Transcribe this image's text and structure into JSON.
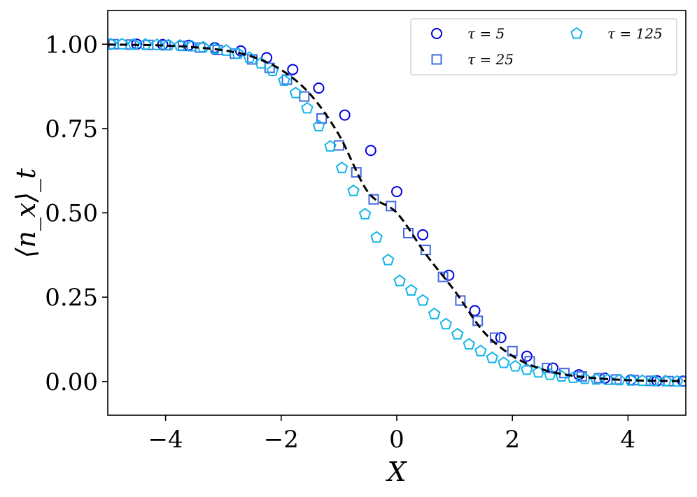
{
  "chart_data": {
    "type": "line",
    "xlabel": "X",
    "ylabel": "⟨n_x⟩_t",
    "xlim": [
      -5,
      5
    ],
    "ylim": [
      -0.1,
      1.1
    ],
    "xticks": [
      -4,
      -2,
      0,
      2,
      4
    ],
    "xtick_labels": [
      "−4",
      "−2",
      "0",
      "2",
      "4"
    ],
    "yticks": [
      0.0,
      0.25,
      0.5,
      0.75,
      1.0
    ],
    "ytick_labels": [
      "0.00",
      "0.25",
      "0.50",
      "0.75",
      "1.00"
    ],
    "grid": false,
    "legend_placement": "top-right",
    "reference_curve": {
      "style": "dashed",
      "color": "#000000",
      "x": [
        -5.0,
        -4.5,
        -4.0,
        -3.5,
        -3.0,
        -2.5,
        -2.0,
        -1.5,
        -1.0,
        -0.5,
        0.0,
        0.5,
        1.0,
        1.5,
        2.0,
        2.5,
        3.0,
        3.5,
        4.0,
        4.5,
        5.0
      ],
      "y": [
        0.999,
        0.998,
        0.996,
        0.991,
        0.982,
        0.963,
        0.924,
        0.852,
        0.731,
        0.562,
        0.5,
        0.378,
        0.269,
        0.148,
        0.076,
        0.037,
        0.018,
        0.009,
        0.004,
        0.002,
        0.001
      ]
    },
    "series": [
      {
        "name": "τ = 5",
        "marker": "circle",
        "color": "#0000e0",
        "x": [
          -4.95,
          -4.5,
          -4.05,
          -3.6,
          -3.15,
          -2.7,
          -2.25,
          -1.8,
          -1.35,
          -0.9,
          -0.45,
          0.0,
          0.45,
          0.9,
          1.35,
          1.8,
          2.25,
          2.7,
          3.15,
          3.6,
          4.05,
          4.5,
          4.95
        ],
        "y": [
          1.0,
          1.0,
          0.999,
          0.997,
          0.99,
          0.98,
          0.96,
          0.925,
          0.87,
          0.79,
          0.685,
          0.563,
          0.435,
          0.315,
          0.21,
          0.13,
          0.075,
          0.04,
          0.02,
          0.01,
          0.005,
          0.002,
          0.001
        ]
      },
      {
        "name": "τ = 25",
        "marker": "square",
        "color": "#4169e1",
        "x": [
          -4.9,
          -4.6,
          -4.3,
          -4.0,
          -3.7,
          -3.4,
          -3.1,
          -2.8,
          -2.5,
          -2.2,
          -1.9,
          -1.6,
          -1.3,
          -1.0,
          -0.7,
          -0.4,
          -0.1,
          0.2,
          0.5,
          0.8,
          1.1,
          1.4,
          1.7,
          2.0,
          2.3,
          2.6,
          2.9,
          3.2,
          3.5,
          3.8,
          4.1,
          4.4,
          4.7,
          4.97
        ],
        "y": [
          1.0,
          0.999,
          0.998,
          0.997,
          0.995,
          0.99,
          0.983,
          0.972,
          0.955,
          0.93,
          0.895,
          0.845,
          0.78,
          0.7,
          0.62,
          0.54,
          0.52,
          0.44,
          0.39,
          0.31,
          0.24,
          0.18,
          0.13,
          0.09,
          0.06,
          0.04,
          0.025,
          0.015,
          0.01,
          0.006,
          0.004,
          0.002,
          0.001,
          0.0
        ]
      },
      {
        "name": "τ = 125",
        "marker": "pentagon",
        "color": "#12b5e8",
        "x": [
          -4.95,
          -4.75,
          -4.55,
          -4.35,
          -4.15,
          -3.95,
          -3.75,
          -3.55,
          -3.35,
          -3.15,
          -2.95,
          -2.75,
          -2.55,
          -2.35,
          -2.15,
          -1.95,
          -1.75,
          -1.55,
          -1.35,
          -1.15,
          -0.95,
          -0.75,
          -0.55,
          -0.35,
          -0.15,
          0.05,
          0.25,
          0.45,
          0.65,
          0.85,
          1.05,
          1.25,
          1.45,
          1.65,
          1.85,
          2.05,
          2.25,
          2.45,
          2.65,
          2.85,
          3.05,
          3.25,
          3.45,
          3.65,
          3.85,
          4.05,
          4.25,
          4.45,
          4.65,
          4.85
        ],
        "y": [
          1.0,
          1.0,
          0.999,
          0.999,
          0.998,
          0.997,
          0.996,
          0.994,
          0.991,
          0.987,
          0.981,
          0.972,
          0.96,
          0.943,
          0.921,
          0.892,
          0.855,
          0.81,
          0.757,
          0.697,
          0.633,
          0.565,
          0.496,
          0.427,
          0.36,
          0.298,
          0.27,
          0.24,
          0.2,
          0.17,
          0.14,
          0.11,
          0.09,
          0.07,
          0.055,
          0.045,
          0.035,
          0.027,
          0.02,
          0.015,
          0.011,
          0.008,
          0.006,
          0.005,
          0.004,
          0.003,
          0.002,
          0.001,
          0.001,
          0.0
        ]
      }
    ]
  }
}
